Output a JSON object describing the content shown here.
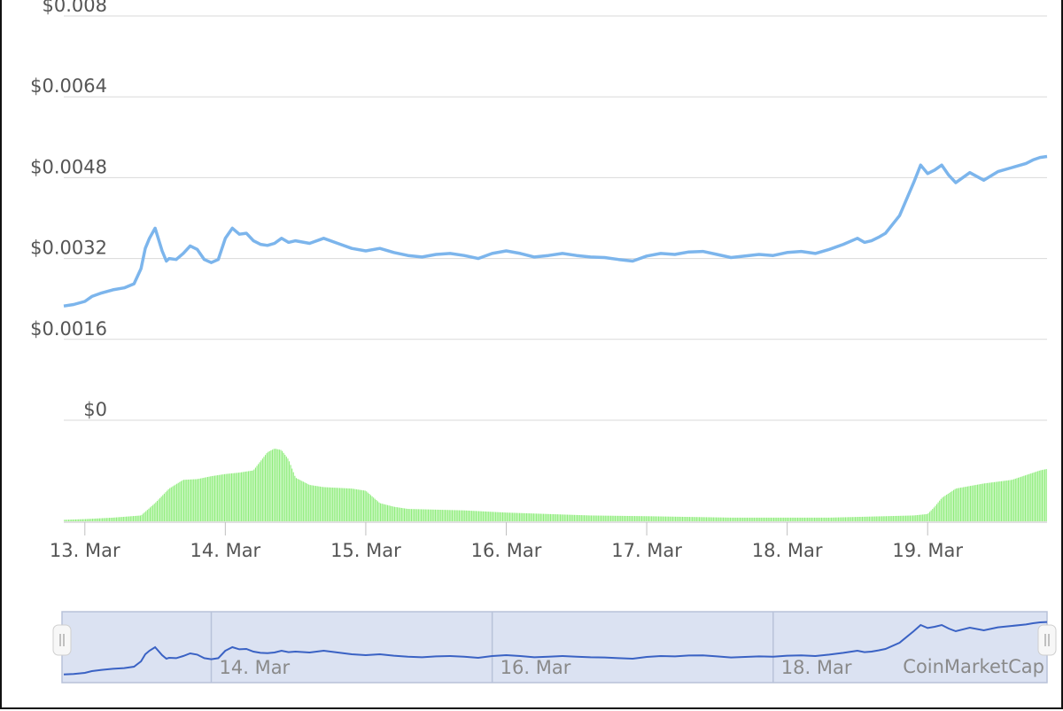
{
  "chart_data": {
    "type": "line",
    "title": "",
    "xlabel": "",
    "ylabel": "",
    "price_axis": {
      "ticks": [
        {
          "value": 0,
          "label": "$0"
        },
        {
          "value": 0.0016,
          "label": "$0.0016"
        },
        {
          "value": 0.0032,
          "label": "$0.0032"
        },
        {
          "value": 0.0048,
          "label": "$0.0048"
        },
        {
          "value": 0.0064,
          "label": "$0.0064"
        },
        {
          "value": 0.008,
          "label": "$0.008"
        }
      ],
      "ylim": [
        0,
        0.008
      ]
    },
    "x_ticks": [
      {
        "x": 13,
        "label": "13. Mar"
      },
      {
        "x": 14,
        "label": "14. Mar"
      },
      {
        "x": 15,
        "label": "15. Mar"
      },
      {
        "x": 16,
        "label": "16. Mar"
      },
      {
        "x": 17,
        "label": "17. Mar"
      },
      {
        "x": 18,
        "label": "18. Mar"
      },
      {
        "x": 19,
        "label": "19. Mar"
      }
    ],
    "xlim": [
      12.85,
      19.85
    ],
    "series": [
      {
        "kind": "price",
        "color": "#7cb5ec",
        "x": [
          12.85,
          12.92,
          13.0,
          13.05,
          13.12,
          13.2,
          13.28,
          13.35,
          13.4,
          13.43,
          13.46,
          13.5,
          13.55,
          13.58,
          13.6,
          13.65,
          13.7,
          13.75,
          13.8,
          13.85,
          13.9,
          13.95,
          14.0,
          14.05,
          14.1,
          14.15,
          14.2,
          14.25,
          14.3,
          14.35,
          14.4,
          14.45,
          14.5,
          14.6,
          14.7,
          14.8,
          14.9,
          15.0,
          15.1,
          15.2,
          15.3,
          15.4,
          15.5,
          15.6,
          15.7,
          15.8,
          15.9,
          16.0,
          16.1,
          16.2,
          16.3,
          16.4,
          16.5,
          16.6,
          16.7,
          16.8,
          16.9,
          17.0,
          17.1,
          17.2,
          17.3,
          17.4,
          17.5,
          17.6,
          17.7,
          17.8,
          17.9,
          18.0,
          18.1,
          18.2,
          18.3,
          18.4,
          18.5,
          18.55,
          18.6,
          18.65,
          18.7,
          18.8,
          18.9,
          18.95,
          19.0,
          19.05,
          19.1,
          19.15,
          19.2,
          19.3,
          19.4,
          19.5,
          19.6,
          19.7,
          19.75,
          19.8,
          19.85
        ],
        "values": [
          0.00226,
          0.00229,
          0.00235,
          0.00245,
          0.00252,
          0.00258,
          0.00262,
          0.0027,
          0.003,
          0.0034,
          0.0036,
          0.0038,
          0.00335,
          0.00315,
          0.0032,
          0.00318,
          0.0033,
          0.00345,
          0.00338,
          0.00318,
          0.00312,
          0.00318,
          0.0036,
          0.0038,
          0.00368,
          0.0037,
          0.00355,
          0.00348,
          0.00346,
          0.0035,
          0.0036,
          0.00352,
          0.00355,
          0.0035,
          0.0036,
          0.0035,
          0.0034,
          0.00335,
          0.0034,
          0.00332,
          0.00326,
          0.00323,
          0.00328,
          0.0033,
          0.00326,
          0.0032,
          0.0033,
          0.00335,
          0.0033,
          0.00323,
          0.00326,
          0.0033,
          0.00326,
          0.00323,
          0.00322,
          0.00318,
          0.00315,
          0.00325,
          0.0033,
          0.00328,
          0.00333,
          0.00334,
          0.00328,
          0.00322,
          0.00325,
          0.00328,
          0.00326,
          0.00332,
          0.00334,
          0.0033,
          0.00338,
          0.00348,
          0.0036,
          0.00352,
          0.00355,
          0.00362,
          0.0037,
          0.00405,
          0.0047,
          0.00505,
          0.00488,
          0.00495,
          0.00505,
          0.00485,
          0.0047,
          0.0049,
          0.00475,
          0.00492,
          0.005,
          0.00508,
          0.00515,
          0.0052,
          0.00522
        ]
      },
      {
        "kind": "volume",
        "color": "#90ed7d",
        "x": [
          12.85,
          13.0,
          13.2,
          13.4,
          13.5,
          13.6,
          13.7,
          13.8,
          13.9,
          14.0,
          14.1,
          14.2,
          14.3,
          14.35,
          14.4,
          14.45,
          14.5,
          14.6,
          14.7,
          14.8,
          14.9,
          15.0,
          15.1,
          15.2,
          15.3,
          15.5,
          15.7,
          16.0,
          16.3,
          16.6,
          17.0,
          17.3,
          17.6,
          18.0,
          18.3,
          18.5,
          18.7,
          18.9,
          19.0,
          19.05,
          19.1,
          19.2,
          19.4,
          19.6,
          19.8,
          19.85
        ],
        "values": [
          2,
          3,
          5,
          8,
          25,
          45,
          57,
          58,
          62,
          65,
          67,
          70,
          95,
          100,
          98,
          85,
          60,
          50,
          47,
          46,
          45,
          42,
          25,
          20,
          17,
          16,
          15,
          12,
          10,
          8,
          7,
          6,
          5,
          5,
          5,
          6,
          7,
          8,
          10,
          20,
          32,
          45,
          52,
          57,
          70,
          72
        ]
      }
    ],
    "volume_scale_max": 100,
    "grid": true,
    "legend": "none"
  },
  "navigator": {
    "ticks": [
      {
        "x": 14,
        "label": "14. Mar"
      },
      {
        "x": 16,
        "label": "16. Mar"
      },
      {
        "x": 18,
        "label": "18. Mar"
      }
    ],
    "grip_icon": "resize-handle-icon"
  },
  "credit": "CoinMarketCap",
  "colors": {
    "price_line": "#7cb5ec",
    "volume_bars": "#90ed7d",
    "navigator_fill": "#dbe2f2",
    "navigator_line": "#3a62c4",
    "grid": "#d9d9d9",
    "label": "#555555"
  }
}
